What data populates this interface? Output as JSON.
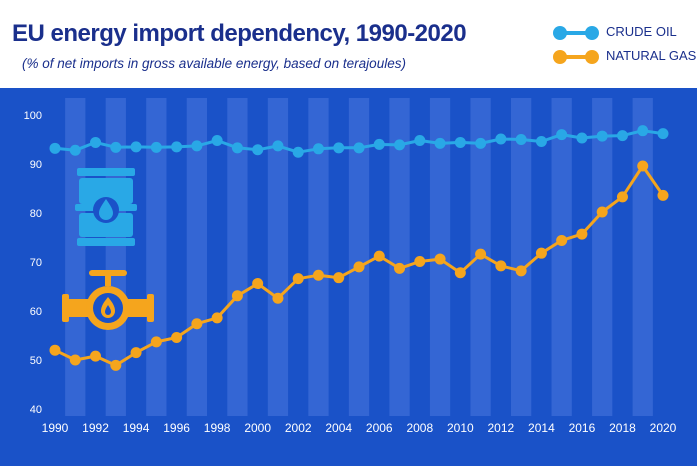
{
  "chart_data": {
    "type": "line",
    "title": "EU energy import dependency, 1990-2020",
    "subtitle": "(% of net imports in gross available energy, based on terajoules)",
    "x": [
      1990,
      1991,
      1992,
      1993,
      1994,
      1995,
      1996,
      1997,
      1998,
      1999,
      2000,
      2001,
      2002,
      2003,
      2004,
      2005,
      2006,
      2007,
      2008,
      2009,
      2010,
      2011,
      2012,
      2013,
      2014,
      2015,
      2016,
      2017,
      2018,
      2019,
      2020
    ],
    "x_tick_labels": [
      "1990",
      "1992",
      "1994",
      "1996",
      "1998",
      "2000",
      "2002",
      "2004",
      "2006",
      "2008",
      "2010",
      "2012",
      "2014",
      "2016",
      "2018",
      "2020"
    ],
    "y_tick_labels": [
      "100",
      "90",
      "80",
      "70",
      "60",
      "50",
      "40"
    ],
    "ylim": [
      40,
      100
    ],
    "xlim": [
      1990,
      2020
    ],
    "grid": "alternating vertical bands",
    "legend_position": "top-right",
    "series": [
      {
        "name": "CRUDE OIL",
        "color": "#29a8e6",
        "values": [
          93.2,
          92.8,
          94.4,
          93.4,
          93.5,
          93.4,
          93.5,
          93.7,
          94.8,
          93.3,
          92.9,
          93.7,
          92.4,
          93.1,
          93.3,
          93.3,
          94.0,
          93.9,
          94.8,
          94.2,
          94.4,
          94.2,
          95.1,
          95.0,
          94.6,
          96.0,
          95.3,
          95.7,
          95.8,
          96.8,
          96.2
        ]
      },
      {
        "name": "NATURAL GAS",
        "color": "#f5a51d",
        "values": [
          52.0,
          50.0,
          50.8,
          48.9,
          51.5,
          53.7,
          54.6,
          57.4,
          58.6,
          63.1,
          65.6,
          62.6,
          66.6,
          67.3,
          66.8,
          69.0,
          71.2,
          68.7,
          70.1,
          70.6,
          67.8,
          71.6,
          69.2,
          68.2,
          71.8,
          74.4,
          75.7,
          80.2,
          83.3,
          89.6,
          83.6
        ]
      }
    ]
  },
  "icons": {
    "barrel": "oil-barrel-icon",
    "pipe": "gas-pipeline-valve-icon"
  },
  "colors": {
    "plot_background": "#1a52c8",
    "band_light": "#3466d4",
    "title": "#1a2f8c"
  }
}
